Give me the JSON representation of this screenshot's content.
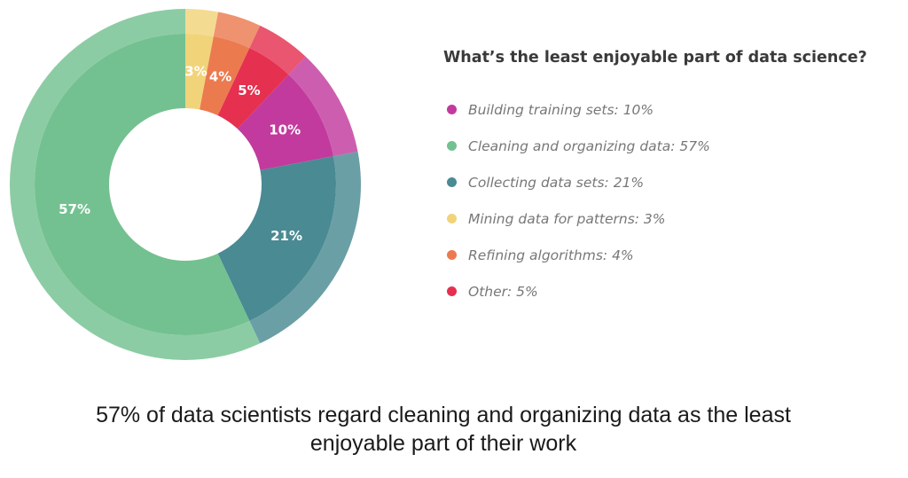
{
  "chart_data": {
    "type": "pie",
    "title": "What’s the least enjoyable part of data science?",
    "categories": [
      "Mining data for patterns",
      "Refining algorithms",
      "Other",
      "Building training sets",
      "Collecting data sets",
      "Cleaning and organizing data"
    ],
    "values": [
      3,
      4,
      5,
      10,
      21,
      57
    ],
    "labels": [
      "3%",
      "4%",
      "5%",
      "10%",
      "21%",
      "57%"
    ],
    "colors": [
      "#f1d37a",
      "#ec7a4f",
      "#e5304f",
      "#c23a9d",
      "#4a8a93",
      "#73c190"
    ],
    "legend_position": "right"
  },
  "legend": {
    "items": [
      {
        "text": "Building training sets: 10%",
        "color": "#c23a9d"
      },
      {
        "text": "Cleaning and organizing data: 57%",
        "color": "#73c190"
      },
      {
        "text": "Collecting data sets: 21%",
        "color": "#4a8a93"
      },
      {
        "text": "Mining data for patterns: 3%",
        "color": "#f1d37a"
      },
      {
        "text": "Refining algorithms: 4%",
        "color": "#ec7a4f"
      },
      {
        "text": "Other: 5%",
        "color": "#e5304f"
      }
    ]
  },
  "caption": {
    "line1": "57% of data scientists regard cleaning and organizing data as the least",
    "line2": "enjoyable part of their work"
  }
}
